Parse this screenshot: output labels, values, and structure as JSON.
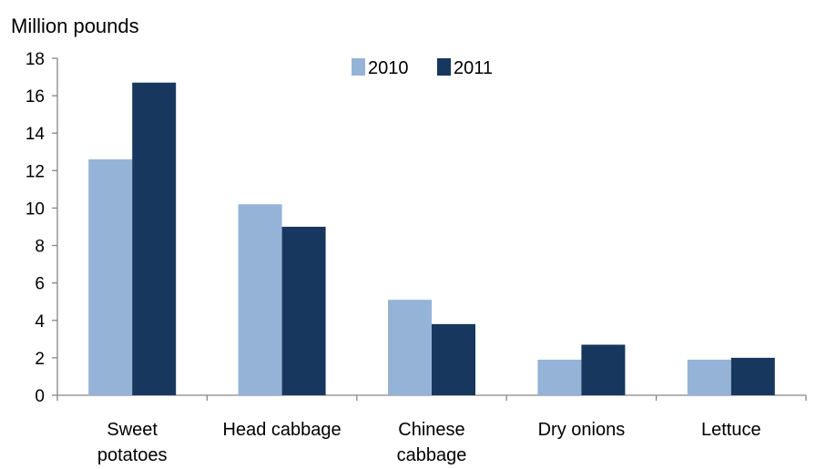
{
  "chart_data": {
    "type": "bar",
    "title": "",
    "xlabel": "",
    "ylabel": "Million pounds",
    "ylim": [
      0,
      18
    ],
    "yticks": [
      0,
      2,
      4,
      6,
      8,
      10,
      12,
      14,
      16,
      18
    ],
    "grid": false,
    "legend_position": "top-center",
    "categories": [
      [
        "Sweet",
        "potatoes"
      ],
      [
        "Head cabbage"
      ],
      [
        "Chinese",
        "cabbage"
      ],
      [
        "Dry onions"
      ],
      [
        "Lettuce"
      ]
    ],
    "series": [
      {
        "name": "2010",
        "color": "#95b3d7",
        "values": [
          12.6,
          10.2,
          5.1,
          1.9,
          1.9
        ]
      },
      {
        "name": "2011",
        "color": "#17375e",
        "values": [
          16.7,
          9.0,
          3.8,
          2.7,
          2.0
        ]
      }
    ]
  }
}
